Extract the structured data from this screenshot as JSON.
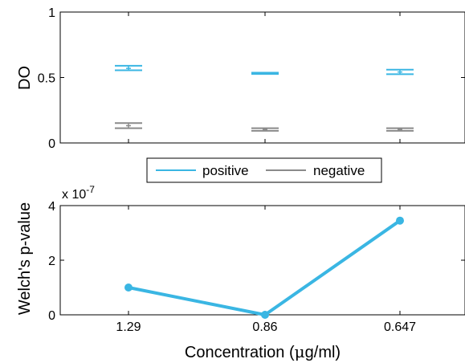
{
  "chart_data": [
    {
      "type": "errorbar",
      "ylabel": "DO",
      "ylim": [
        0,
        1
      ],
      "yticks": [
        "0",
        "0.5",
        "1"
      ],
      "categories": [
        "1.29",
        "0.86",
        "0.647"
      ],
      "series": [
        {
          "name": "positive",
          "color": "#3ab6e3",
          "lower": [
            0.555,
            0.527,
            0.525
          ],
          "center": [
            0.57,
            0.532,
            0.542
          ],
          "upper": [
            0.59,
            0.537,
            0.56
          ]
        },
        {
          "name": "negative",
          "color": "#8a8a8a",
          "lower": [
            0.113,
            0.093,
            0.093
          ],
          "center": [
            0.132,
            0.103,
            0.103
          ],
          "upper": [
            0.152,
            0.113,
            0.113
          ]
        }
      ],
      "legend": {
        "position": "bottom-center",
        "entries": [
          "positive",
          "negative"
        ]
      }
    },
    {
      "type": "line",
      "ylabel": "Welch's p-value",
      "xlabel": "Concentration (μg/ml)",
      "exponent": "x 10-7",
      "ylim": [
        0,
        4
      ],
      "yticks": [
        "0",
        "2",
        "4"
      ],
      "categories": [
        "1.29",
        "0.86",
        "0.647"
      ],
      "series": [
        {
          "color": "#3ab6e3",
          "values": [
            1.0,
            0.0,
            3.45
          ]
        }
      ]
    }
  ]
}
